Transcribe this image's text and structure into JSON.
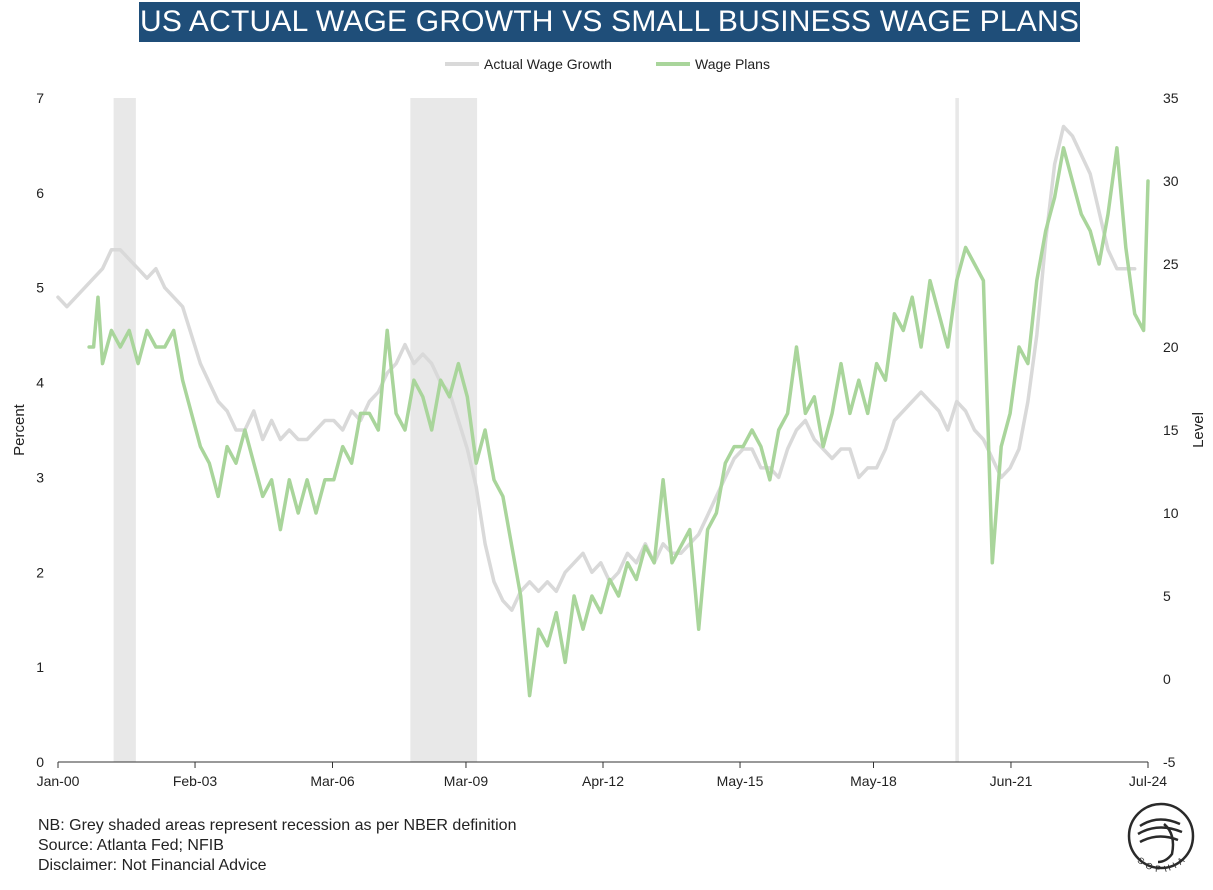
{
  "chart_data": {
    "type": "line",
    "title": "US ACTUAL WAGE GROWTH VS SMALL BUSINESS WAGE PLANS",
    "ylabel_left": "Percent",
    "ylabel_right": "Level",
    "ylim_left": [
      0,
      7
    ],
    "ylim_right": [
      -5,
      35
    ],
    "yticks_left": [
      "0",
      "1",
      "2",
      "3",
      "4",
      "5",
      "6",
      "7"
    ],
    "yticks_right": [
      "-5",
      "0",
      "5",
      "10",
      "15",
      "20",
      "25",
      "30",
      "35"
    ],
    "xlim": [
      2000.0,
      2024.5
    ],
    "xticks": [
      {
        "label": "Jan-00",
        "x": 2000.0
      },
      {
        "label": "Feb-03",
        "x": 2003.08
      },
      {
        "label": "Mar-06",
        "x": 2006.17
      },
      {
        "label": "Mar-09",
        "x": 2009.17
      },
      {
        "label": "Apr-12",
        "x": 2012.25
      },
      {
        "label": "May-15",
        "x": 2015.33
      },
      {
        "label": "May-18",
        "x": 2018.33
      },
      {
        "label": "Jun-21",
        "x": 2021.42
      },
      {
        "label": "Jul-24",
        "x": 2024.5
      }
    ],
    "legend": [
      "Actual Wage Growth",
      "Wage Plans"
    ],
    "legend_position": "top-center",
    "recessions": [
      [
        2001.25,
        2001.75
      ],
      [
        2007.92,
        2009.42
      ],
      [
        2020.17,
        2020.25
      ]
    ],
    "series": [
      {
        "name": "Actual Wage Growth",
        "axis": "left",
        "color": "#d9d9d9",
        "points": [
          [
            2000.0,
            4.9
          ],
          [
            2000.2,
            4.8
          ],
          [
            2000.4,
            4.9
          ],
          [
            2000.6,
            5.0
          ],
          [
            2000.8,
            5.1
          ],
          [
            2001.0,
            5.2
          ],
          [
            2001.2,
            5.4
          ],
          [
            2001.4,
            5.4
          ],
          [
            2001.6,
            5.3
          ],
          [
            2001.8,
            5.2
          ],
          [
            2002.0,
            5.1
          ],
          [
            2002.2,
            5.2
          ],
          [
            2002.4,
            5.0
          ],
          [
            2002.6,
            4.9
          ],
          [
            2002.8,
            4.8
          ],
          [
            2003.0,
            4.5
          ],
          [
            2003.2,
            4.2
          ],
          [
            2003.4,
            4.0
          ],
          [
            2003.6,
            3.8
          ],
          [
            2003.8,
            3.7
          ],
          [
            2004.0,
            3.5
          ],
          [
            2004.2,
            3.5
          ],
          [
            2004.4,
            3.7
          ],
          [
            2004.6,
            3.4
          ],
          [
            2004.8,
            3.6
          ],
          [
            2005.0,
            3.4
          ],
          [
            2005.2,
            3.5
          ],
          [
            2005.4,
            3.4
          ],
          [
            2005.6,
            3.4
          ],
          [
            2005.8,
            3.5
          ],
          [
            2006.0,
            3.6
          ],
          [
            2006.2,
            3.6
          ],
          [
            2006.4,
            3.5
          ],
          [
            2006.6,
            3.7
          ],
          [
            2006.8,
            3.6
          ],
          [
            2007.0,
            3.8
          ],
          [
            2007.2,
            3.9
          ],
          [
            2007.4,
            4.1
          ],
          [
            2007.6,
            4.2
          ],
          [
            2007.8,
            4.4
          ],
          [
            2008.0,
            4.2
          ],
          [
            2008.2,
            4.3
          ],
          [
            2008.4,
            4.2
          ],
          [
            2008.6,
            4.0
          ],
          [
            2008.8,
            3.9
          ],
          [
            2009.0,
            3.6
          ],
          [
            2009.2,
            3.3
          ],
          [
            2009.4,
            2.9
          ],
          [
            2009.6,
            2.3
          ],
          [
            2009.8,
            1.9
          ],
          [
            2010.0,
            1.7
          ],
          [
            2010.2,
            1.6
          ],
          [
            2010.4,
            1.8
          ],
          [
            2010.6,
            1.9
          ],
          [
            2010.8,
            1.8
          ],
          [
            2011.0,
            1.9
          ],
          [
            2011.2,
            1.8
          ],
          [
            2011.4,
            2.0
          ],
          [
            2011.6,
            2.1
          ],
          [
            2011.8,
            2.2
          ],
          [
            2012.0,
            2.0
          ],
          [
            2012.2,
            2.1
          ],
          [
            2012.4,
            1.9
          ],
          [
            2012.6,
            2.0
          ],
          [
            2012.8,
            2.2
          ],
          [
            2013.0,
            2.1
          ],
          [
            2013.2,
            2.3
          ],
          [
            2013.4,
            2.1
          ],
          [
            2013.6,
            2.3
          ],
          [
            2013.8,
            2.2
          ],
          [
            2014.0,
            2.2
          ],
          [
            2014.2,
            2.3
          ],
          [
            2014.4,
            2.4
          ],
          [
            2014.6,
            2.6
          ],
          [
            2014.8,
            2.8
          ],
          [
            2015.0,
            3.0
          ],
          [
            2015.2,
            3.2
          ],
          [
            2015.4,
            3.3
          ],
          [
            2015.6,
            3.3
          ],
          [
            2015.8,
            3.1
          ],
          [
            2016.0,
            3.1
          ],
          [
            2016.2,
            3.0
          ],
          [
            2016.4,
            3.3
          ],
          [
            2016.6,
            3.5
          ],
          [
            2016.8,
            3.6
          ],
          [
            2017.0,
            3.4
          ],
          [
            2017.2,
            3.3
          ],
          [
            2017.4,
            3.2
          ],
          [
            2017.6,
            3.3
          ],
          [
            2017.8,
            3.3
          ],
          [
            2018.0,
            3.0
          ],
          [
            2018.2,
            3.1
          ],
          [
            2018.4,
            3.1
          ],
          [
            2018.6,
            3.3
          ],
          [
            2018.8,
            3.6
          ],
          [
            2019.0,
            3.7
          ],
          [
            2019.2,
            3.8
          ],
          [
            2019.4,
            3.9
          ],
          [
            2019.6,
            3.8
          ],
          [
            2019.8,
            3.7
          ],
          [
            2020.0,
            3.5
          ],
          [
            2020.2,
            3.8
          ],
          [
            2020.4,
            3.7
          ],
          [
            2020.6,
            3.5
          ],
          [
            2020.8,
            3.4
          ],
          [
            2021.0,
            3.2
          ],
          [
            2021.2,
            3.0
          ],
          [
            2021.4,
            3.1
          ],
          [
            2021.6,
            3.3
          ],
          [
            2021.8,
            3.8
          ],
          [
            2022.0,
            4.5
          ],
          [
            2022.2,
            5.5
          ],
          [
            2022.4,
            6.3
          ],
          [
            2022.6,
            6.7
          ],
          [
            2022.8,
            6.6
          ],
          [
            2023.0,
            6.4
          ],
          [
            2023.2,
            6.2
          ],
          [
            2023.4,
            5.8
          ],
          [
            2023.6,
            5.4
          ],
          [
            2023.8,
            5.2
          ],
          [
            2024.0,
            5.2
          ],
          [
            2024.2,
            5.2
          ]
        ]
      },
      {
        "name": "Wage Plans",
        "axis": "right",
        "color": "#a9d59b",
        "points": [
          [
            2000.7,
            20
          ],
          [
            2000.8,
            20
          ],
          [
            2000.9,
            23
          ],
          [
            2001.0,
            19
          ],
          [
            2001.1,
            20
          ],
          [
            2001.2,
            21
          ],
          [
            2001.4,
            20
          ],
          [
            2001.6,
            21
          ],
          [
            2001.8,
            19
          ],
          [
            2002.0,
            21
          ],
          [
            2002.2,
            20
          ],
          [
            2002.4,
            20
          ],
          [
            2002.6,
            21
          ],
          [
            2002.8,
            18
          ],
          [
            2003.0,
            16
          ],
          [
            2003.2,
            14
          ],
          [
            2003.4,
            13
          ],
          [
            2003.6,
            11
          ],
          [
            2003.8,
            14
          ],
          [
            2004.0,
            13
          ],
          [
            2004.2,
            15
          ],
          [
            2004.4,
            13
          ],
          [
            2004.6,
            11
          ],
          [
            2004.8,
            12
          ],
          [
            2005.0,
            9
          ],
          [
            2005.2,
            12
          ],
          [
            2005.4,
            10
          ],
          [
            2005.6,
            12
          ],
          [
            2005.8,
            10
          ],
          [
            2006.0,
            12
          ],
          [
            2006.2,
            12
          ],
          [
            2006.4,
            14
          ],
          [
            2006.6,
            13
          ],
          [
            2006.8,
            16
          ],
          [
            2007.0,
            16
          ],
          [
            2007.2,
            15
          ],
          [
            2007.4,
            21
          ],
          [
            2007.6,
            16
          ],
          [
            2007.8,
            15
          ],
          [
            2008.0,
            18
          ],
          [
            2008.2,
            17
          ],
          [
            2008.4,
            15
          ],
          [
            2008.6,
            18
          ],
          [
            2008.8,
            17
          ],
          [
            2009.0,
            19
          ],
          [
            2009.2,
            17
          ],
          [
            2009.4,
            13
          ],
          [
            2009.6,
            15
          ],
          [
            2009.8,
            12
          ],
          [
            2010.0,
            11
          ],
          [
            2010.2,
            8
          ],
          [
            2010.4,
            5
          ],
          [
            2010.6,
            -1
          ],
          [
            2010.8,
            3
          ],
          [
            2011.0,
            2
          ],
          [
            2011.2,
            4
          ],
          [
            2011.4,
            1
          ],
          [
            2011.6,
            5
          ],
          [
            2011.8,
            3
          ],
          [
            2012.0,
            5
          ],
          [
            2012.2,
            4
          ],
          [
            2012.4,
            6
          ],
          [
            2012.6,
            5
          ],
          [
            2012.8,
            7
          ],
          [
            2013.0,
            6
          ],
          [
            2013.2,
            8
          ],
          [
            2013.4,
            7
          ],
          [
            2013.6,
            12
          ],
          [
            2013.8,
            7
          ],
          [
            2014.0,
            8
          ],
          [
            2014.2,
            9
          ],
          [
            2014.4,
            3
          ],
          [
            2014.6,
            9
          ],
          [
            2014.8,
            10
          ],
          [
            2015.0,
            13
          ],
          [
            2015.2,
            14
          ],
          [
            2015.4,
            14
          ],
          [
            2015.6,
            15
          ],
          [
            2015.8,
            14
          ],
          [
            2016.0,
            12
          ],
          [
            2016.2,
            15
          ],
          [
            2016.4,
            16
          ],
          [
            2016.6,
            20
          ],
          [
            2016.8,
            16
          ],
          [
            2017.0,
            17
          ],
          [
            2017.2,
            14
          ],
          [
            2017.4,
            16
          ],
          [
            2017.6,
            19
          ],
          [
            2017.8,
            16
          ],
          [
            2018.0,
            18
          ],
          [
            2018.2,
            16
          ],
          [
            2018.4,
            19
          ],
          [
            2018.6,
            18
          ],
          [
            2018.8,
            22
          ],
          [
            2019.0,
            21
          ],
          [
            2019.2,
            23
          ],
          [
            2019.4,
            20
          ],
          [
            2019.6,
            24
          ],
          [
            2019.8,
            22
          ],
          [
            2020.0,
            20
          ],
          [
            2020.2,
            24
          ],
          [
            2020.4,
            26
          ],
          [
            2020.6,
            25
          ],
          [
            2020.8,
            24
          ],
          [
            2021.0,
            7
          ],
          [
            2021.2,
            14
          ],
          [
            2021.4,
            16
          ],
          [
            2021.6,
            20
          ],
          [
            2021.8,
            19
          ],
          [
            2022.0,
            24
          ],
          [
            2022.2,
            27
          ],
          [
            2022.4,
            29
          ],
          [
            2022.6,
            32
          ],
          [
            2022.8,
            30
          ],
          [
            2023.0,
            28
          ],
          [
            2023.2,
            27
          ],
          [
            2023.4,
            25
          ],
          [
            2023.6,
            28
          ],
          [
            2023.8,
            32
          ],
          [
            2024.0,
            26
          ],
          [
            2024.2,
            22
          ],
          [
            2024.4,
            21
          ],
          [
            2024.5,
            30
          ]
        ]
      }
    ]
  },
  "notes": {
    "line1": "NB: Grey shaded areas represent recession as per NBER definition",
    "line2": "Source: Atlanta Fed; NFIB",
    "line3": "Disclaimer: Not Financial Advice"
  },
  "logo": {
    "text": "SOPHIA"
  }
}
